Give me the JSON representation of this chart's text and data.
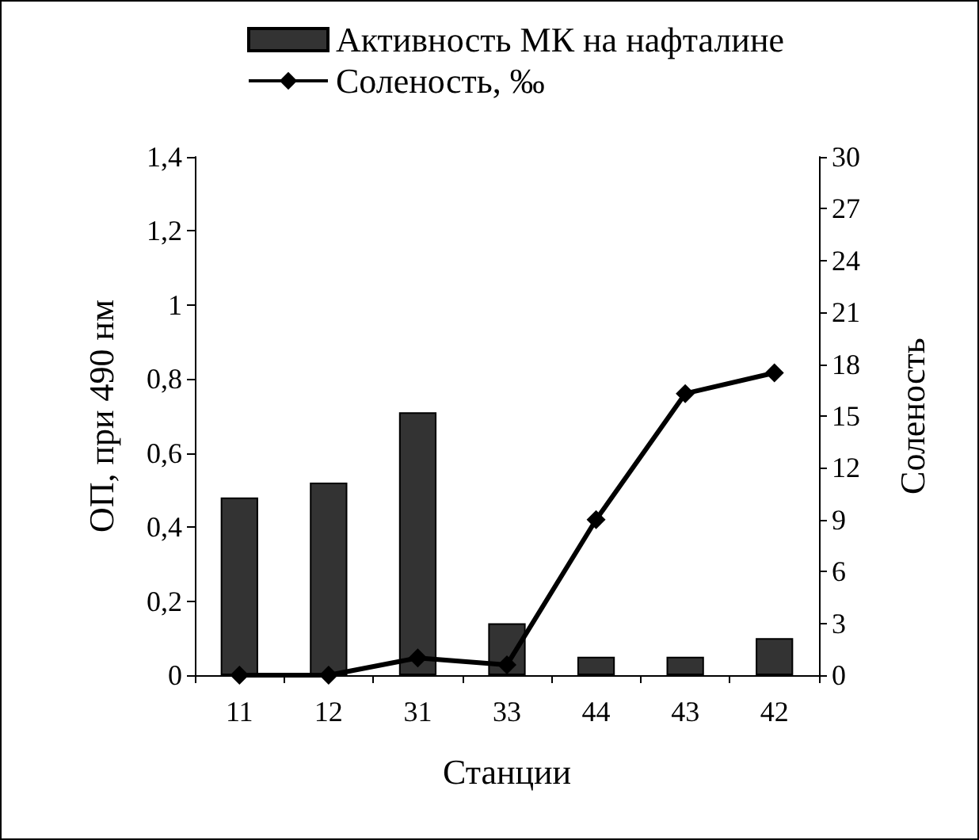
{
  "chart_data": {
    "type": "bar",
    "xlabel": "Станции",
    "ylabel": "ОП, при 490 нм",
    "y2label": "Соленость",
    "categories": [
      "11",
      "12",
      "31",
      "33",
      "44",
      "43",
      "42"
    ],
    "series": [
      {
        "name": "Активность МК на нафталине",
        "color": "#333333",
        "values": [
          0.48,
          0.52,
          0.71,
          0.14,
          0.05,
          0.05,
          0.1
        ]
      },
      {
        "name": "Соленость, ‰",
        "type": "line",
        "axis": "y2",
        "color": "#000000",
        "marker": "diamond",
        "values": [
          0,
          0,
          1,
          0.6,
          9,
          16.3,
          17.5
        ]
      }
    ],
    "ylim": [
      0,
      1.4
    ],
    "yticks": [
      0,
      {
        "value": 0.2,
        "label": "0,2"
      },
      {
        "value": 0.4,
        "label": "0,4"
      },
      {
        "value": 0.6,
        "label": "0,6"
      },
      {
        "value": 0.8,
        "label": "0,8"
      },
      1,
      {
        "value": 1.2,
        "label": "1,2"
      },
      {
        "value": 1.4,
        "label": "1,4"
      }
    ],
    "y2lim": [
      0,
      30
    ],
    "y2ticks": [
      0,
      3,
      6,
      9,
      12,
      15,
      18,
      21,
      24,
      27,
      30
    ],
    "legend": "top",
    "grid": false
  }
}
